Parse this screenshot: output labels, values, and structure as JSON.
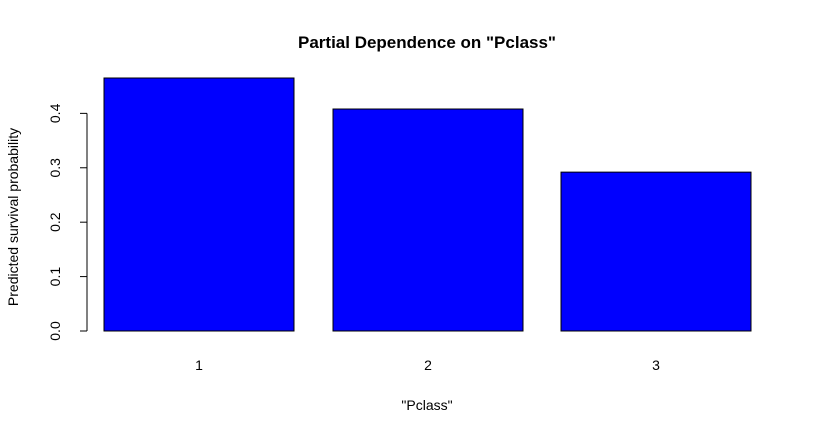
{
  "chart_data": {
    "type": "bar",
    "title": "Partial Dependence on \"Pclass\"",
    "xlabel": "\"Pclass\"",
    "ylabel": "Predicted survival probability",
    "categories": [
      "1",
      "2",
      "3"
    ],
    "values": [
      0.465,
      0.408,
      0.292
    ],
    "ylim": [
      0,
      0.465
    ],
    "yticks": [
      "0.0",
      "0.1",
      "0.2",
      "0.3",
      "0.4"
    ],
    "ytick_values": [
      0.0,
      0.1,
      0.2,
      0.3,
      0.4
    ],
    "grid": false,
    "legend": "none",
    "colors": {
      "bar_fill": "#0000ff",
      "bar_stroke": "#000000",
      "axis": "#000000",
      "background": "#ffffff"
    }
  }
}
